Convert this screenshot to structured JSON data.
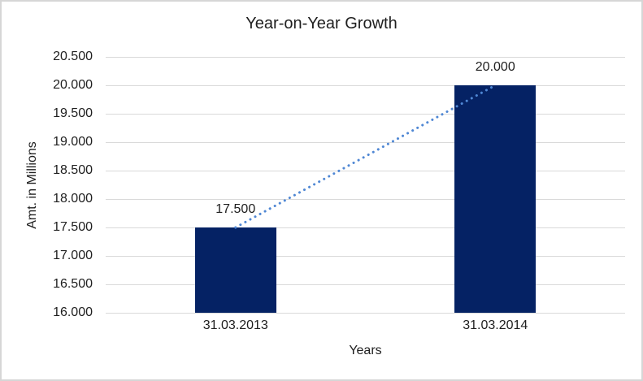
{
  "chart_data": {
    "type": "bar",
    "title": "Year-on-Year Growth",
    "xlabel": "Years",
    "ylabel": "Amt. in Millions",
    "categories": [
      "31.03.2013",
      "31.03.2014"
    ],
    "values": [
      17500,
      20000
    ],
    "value_labels": [
      "17.500",
      "20.000"
    ],
    "ylim": [
      16000,
      20500
    ],
    "yticks": {
      "values": [
        16000,
        16500,
        17000,
        17500,
        18000,
        18500,
        19000,
        19500,
        20000,
        20500
      ],
      "labels": [
        "16.000",
        "16.500",
        "17.000",
        "17.500",
        "18.000",
        "18.500",
        "19.000",
        "19.500",
        "20.000",
        "20.500"
      ]
    },
    "grid": true,
    "legend": false,
    "trendline": {
      "style": "dotted",
      "connects": "bar-tops"
    },
    "colors": {
      "bar": "#052264",
      "trendline": "#4F87D4",
      "gridline": "#D9D9D9",
      "text": "#202020",
      "border": "#D6D6D6",
      "background": "#FFFFFF"
    }
  }
}
